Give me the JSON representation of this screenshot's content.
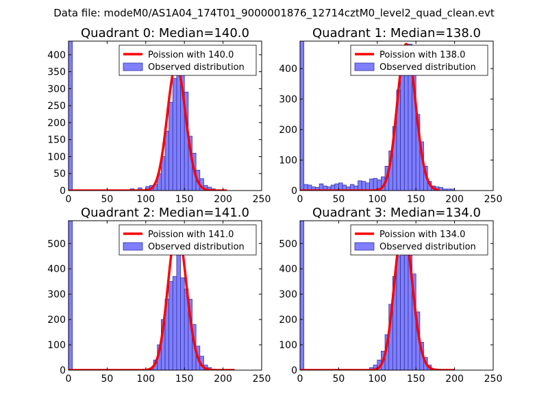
{
  "figure": {
    "suptitle": "Data file: modeM0/AS1A04_174T01_9000001876_12714cztM0_level2_quad_clean.evt"
  },
  "colors": {
    "bar_fill": "#7f7fff",
    "bar_edge": "#3030a0",
    "curve": "#ff0000",
    "axes": "#000000",
    "background": "#ffffff"
  },
  "chart_data": [
    {
      "type": "bar",
      "title": "Quadrant 0: Median=140.0",
      "xlim": [
        0,
        250
      ],
      "ylim": [
        0,
        440
      ],
      "xticks": [
        "0",
        "50",
        "100",
        "150",
        "200",
        "250"
      ],
      "yticks": [
        "0",
        "50",
        "100",
        "150",
        "200",
        "250",
        "300",
        "350",
        "400"
      ],
      "legend": {
        "location": "upper-right",
        "entries": [
          "Poission with 140.0",
          "Observed distribution"
        ]
      },
      "poisson_mean": 140.0,
      "curve_range": [
        0,
        205
      ],
      "bin_width": 5,
      "bins": [
        0,
        80,
        90,
        100,
        105,
        110,
        115,
        120,
        125,
        130,
        135,
        140,
        145,
        150,
        155,
        160,
        165,
        170,
        175,
        180,
        185
      ],
      "counts": [
        440,
        5,
        8,
        12,
        15,
        18,
        50,
        100,
        175,
        260,
        330,
        370,
        360,
        290,
        160,
        110,
        60,
        35,
        15,
        10,
        5
      ]
    },
    {
      "type": "bar",
      "title": "Quadrant 1: Median=138.0",
      "xlim": [
        0,
        250
      ],
      "ylim": [
        0,
        490
      ],
      "xticks": [
        "0",
        "50",
        "100",
        "150",
        "200",
        "250"
      ],
      "yticks": [
        "0",
        "100",
        "200",
        "300",
        "400"
      ],
      "legend": {
        "location": "upper-right",
        "entries": [
          "Poission with 138.0",
          "Observed distribution"
        ]
      },
      "poisson_mean": 138.0,
      "curve_range": [
        0,
        180
      ],
      "bin_width": 5,
      "bins": [
        0,
        5,
        10,
        15,
        20,
        25,
        30,
        35,
        40,
        45,
        50,
        55,
        60,
        65,
        70,
        75,
        80,
        85,
        90,
        95,
        100,
        105,
        110,
        115,
        120,
        125,
        130,
        135,
        140,
        145,
        150,
        155,
        160,
        165,
        170,
        175,
        180,
        185,
        190,
        195
      ],
      "counts": [
        490,
        20,
        18,
        12,
        10,
        22,
        15,
        12,
        18,
        22,
        25,
        18,
        12,
        20,
        15,
        32,
        30,
        25,
        38,
        40,
        35,
        45,
        80,
        130,
        210,
        330,
        380,
        450,
        480,
        380,
        250,
        160,
        80,
        30,
        15,
        12,
        10,
        5,
        5,
        5
      ]
    },
    {
      "type": "bar",
      "title": "Quadrant 2: Median=141.0",
      "xlim": [
        0,
        250
      ],
      "ylim": [
        0,
        590
      ],
      "xticks": [
        "0",
        "50",
        "100",
        "150",
        "200",
        "250"
      ],
      "yticks": [
        "0",
        "100",
        "200",
        "300",
        "400",
        "500"
      ],
      "legend": {
        "location": "upper-right",
        "entries": [
          "Poission with 141.0",
          "Observed distribution"
        ]
      },
      "poisson_mean": 141.0,
      "curve_range": [
        0,
        215
      ],
      "bin_width": 5,
      "bins": [
        0,
        105,
        110,
        115,
        120,
        125,
        130,
        135,
        140,
        145,
        150,
        155,
        160,
        165,
        170,
        175,
        180
      ],
      "counts": [
        590,
        5,
        40,
        100,
        200,
        280,
        350,
        370,
        560,
        365,
        320,
        280,
        180,
        95,
        55,
        20,
        10
      ]
    },
    {
      "type": "bar",
      "title": "Quadrant 3: Median=134.0",
      "xlim": [
        0,
        250
      ],
      "ylim": [
        0,
        590
      ],
      "xticks": [
        "0",
        "50",
        "100",
        "150",
        "200",
        "250"
      ],
      "yticks": [
        "0",
        "100",
        "200",
        "300",
        "400",
        "500"
      ],
      "legend": {
        "location": "upper-right",
        "entries": [
          "Poission with 134.0",
          "Observed distribution"
        ]
      },
      "poisson_mean": 134.0,
      "curve_range": [
        0,
        200
      ],
      "bin_width": 5,
      "bins": [
        0,
        90,
        95,
        100,
        105,
        110,
        115,
        120,
        125,
        130,
        135,
        140,
        145,
        150,
        155,
        160,
        165
      ],
      "counts": [
        590,
        10,
        20,
        40,
        75,
        140,
        260,
        370,
        450,
        500,
        570,
        470,
        380,
        230,
        110,
        50,
        20
      ]
    }
  ]
}
